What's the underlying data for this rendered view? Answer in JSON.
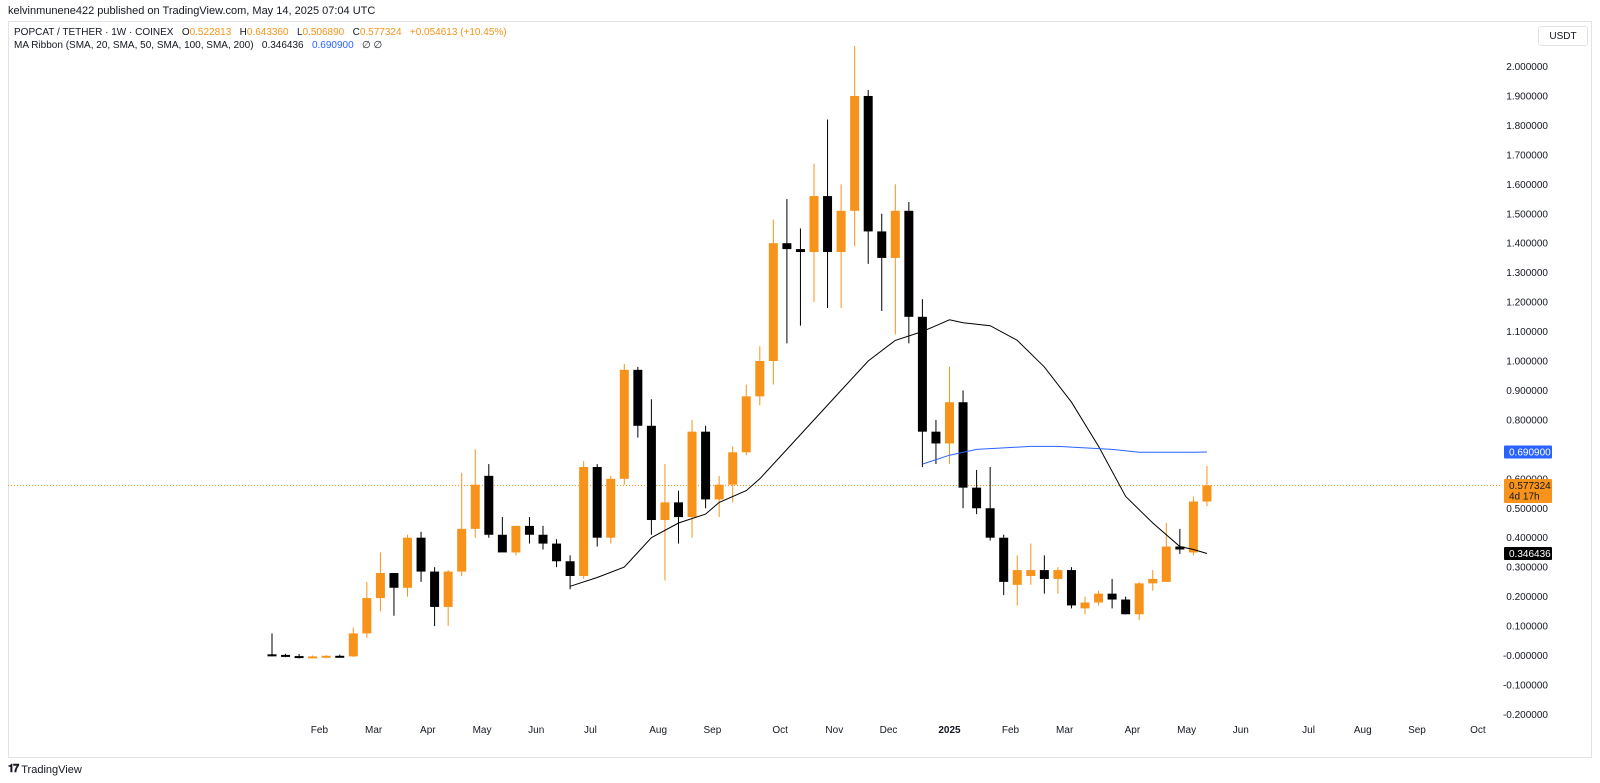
{
  "header": {
    "publish_info": "kelvinmunene422 published on TradingView.com, May 14, 2025 07:04 UTC"
  },
  "legend": {
    "symbol": "POPCAT / TETHER · 1W · COINEX",
    "open_label": "O",
    "open": "0.522813",
    "high_label": "H",
    "high": "0.643360",
    "low_label": "L",
    "low": "0.506890",
    "close_label": "C",
    "close": "0.577324",
    "change": "+0.054613 (+10.45%)",
    "indicator": "MA Ribbon (SMA, 20, SMA, 50, SMA, 100, SMA, 200)",
    "ma20_value": "0.346436",
    "ma50_value": "0.690900",
    "na_values": "∅ ∅"
  },
  "currency_button": "USDT",
  "footer": {
    "brand": "TradingView"
  },
  "colors": {
    "up": "#f7931a",
    "down": "#000000",
    "ma20": "#000000",
    "ma50": "#2962ff",
    "price_line": "#f7931a"
  },
  "chart_data": {
    "type": "candlestick",
    "symbol": "POPCAT / TETHER",
    "interval": "1W",
    "exchange": "COINEX",
    "ylim": [
      -0.2,
      2.05
    ],
    "y_ticks": [
      "2.000000",
      "1.900000",
      "1.800000",
      "1.700000",
      "1.600000",
      "1.500000",
      "1.400000",
      "1.300000",
      "1.200000",
      "1.100000",
      "1.000000",
      "0.900000",
      "0.800000",
      "0.700000",
      "0.600000",
      "0.500000",
      "0.400000",
      "0.300000",
      "0.200000",
      "0.100000",
      "-0.000000",
      "-0.100000",
      "-0.200000"
    ],
    "y_tick_values": [
      2.0,
      1.9,
      1.8,
      1.7,
      1.6,
      1.5,
      1.4,
      1.3,
      1.2,
      1.1,
      1.0,
      0.9,
      0.8,
      0.7,
      0.6,
      0.5,
      0.4,
      0.3,
      0.2,
      0.1,
      0.0,
      -0.1,
      -0.2
    ],
    "x_labels": [
      {
        "label": "Feb",
        "week": 3.5
      },
      {
        "label": "Mar",
        "week": 7.5
      },
      {
        "label": "Apr",
        "week": 11.5
      },
      {
        "label": "May",
        "week": 15.5
      },
      {
        "label": "Jun",
        "week": 19.5
      },
      {
        "label": "Jul",
        "week": 23.5
      },
      {
        "label": "Aug",
        "week": 28.5
      },
      {
        "label": "Sep",
        "week": 32.5
      },
      {
        "label": "Oct",
        "week": 37.5
      },
      {
        "label": "Nov",
        "week": 41.5
      },
      {
        "label": "Dec",
        "week": 45.5
      },
      {
        "label": "2025",
        "week": 50.0
      },
      {
        "label": "Feb",
        "week": 54.5
      },
      {
        "label": "Mar",
        "week": 58.5
      },
      {
        "label": "Apr",
        "week": 63.5
      },
      {
        "label": "May",
        "week": 67.5
      },
      {
        "label": "Jun",
        "week": 71.5
      },
      {
        "label": "Jul",
        "week": 76.5
      },
      {
        "label": "Aug",
        "week": 80.5
      },
      {
        "label": "Sep",
        "week": 84.5
      },
      {
        "label": "Oct",
        "week": 89.0
      }
    ],
    "candles": [
      {
        "o": 0.004,
        "h": 0.075,
        "l": -0.003,
        "c": 0.002
      },
      {
        "o": 0.002,
        "h": 0.006,
        "l": -0.006,
        "c": -0.002
      },
      {
        "o": -0.002,
        "h": 0.005,
        "l": -0.01,
        "c": -0.005
      },
      {
        "o": -0.005,
        "h": 0.0,
        "l": -0.008,
        "c": -0.003
      },
      {
        "o": -0.003,
        "h": 0.001,
        "l": -0.006,
        "c": -0.001
      },
      {
        "o": -0.001,
        "h": 0.003,
        "l": -0.005,
        "c": -0.003
      },
      {
        "o": -0.003,
        "h": 0.095,
        "l": -0.005,
        "c": 0.075
      },
      {
        "o": 0.075,
        "h": 0.25,
        "l": 0.06,
        "c": 0.195
      },
      {
        "o": 0.195,
        "h": 0.35,
        "l": 0.15,
        "c": 0.28
      },
      {
        "o": 0.28,
        "h": 0.28,
        "l": 0.135,
        "c": 0.23
      },
      {
        "o": 0.23,
        "h": 0.41,
        "l": 0.2,
        "c": 0.4
      },
      {
        "o": 0.4,
        "h": 0.42,
        "l": 0.25,
        "c": 0.285
      },
      {
        "o": 0.285,
        "h": 0.3,
        "l": 0.1,
        "c": 0.165
      },
      {
        "o": 0.165,
        "h": 0.29,
        "l": 0.1,
        "c": 0.285
      },
      {
        "o": 0.285,
        "h": 0.62,
        "l": 0.27,
        "c": 0.43
      },
      {
        "o": 0.43,
        "h": 0.7,
        "l": 0.4,
        "c": 0.58
      },
      {
        "o": 0.61,
        "h": 0.65,
        "l": 0.4,
        "c": 0.41
      },
      {
        "o": 0.41,
        "h": 0.47,
        "l": 0.36,
        "c": 0.35
      },
      {
        "o": 0.35,
        "h": 0.44,
        "l": 0.34,
        "c": 0.44
      },
      {
        "o": 0.44,
        "h": 0.47,
        "l": 0.38,
        "c": 0.41
      },
      {
        "o": 0.41,
        "h": 0.44,
        "l": 0.36,
        "c": 0.38
      },
      {
        "o": 0.38,
        "h": 0.395,
        "l": 0.3,
        "c": 0.32
      },
      {
        "o": 0.32,
        "h": 0.34,
        "l": 0.225,
        "c": 0.27
      },
      {
        "o": 0.27,
        "h": 0.66,
        "l": 0.26,
        "c": 0.64
      },
      {
        "o": 0.64,
        "h": 0.65,
        "l": 0.37,
        "c": 0.4
      },
      {
        "o": 0.4,
        "h": 0.61,
        "l": 0.38,
        "c": 0.6
      },
      {
        "o": 0.6,
        "h": 0.99,
        "l": 0.58,
        "c": 0.97
      },
      {
        "o": 0.97,
        "h": 0.98,
        "l": 0.74,
        "c": 0.78
      },
      {
        "o": 0.78,
        "h": 0.87,
        "l": 0.41,
        "c": 0.46
      },
      {
        "o": 0.46,
        "h": 0.65,
        "l": 0.255,
        "c": 0.52
      },
      {
        "o": 0.52,
        "h": 0.56,
        "l": 0.38,
        "c": 0.47
      },
      {
        "o": 0.47,
        "h": 0.8,
        "l": 0.4,
        "c": 0.76
      },
      {
        "o": 0.76,
        "h": 0.78,
        "l": 0.5,
        "c": 0.53
      },
      {
        "o": 0.53,
        "h": 0.61,
        "l": 0.47,
        "c": 0.58
      },
      {
        "o": 0.58,
        "h": 0.71,
        "l": 0.52,
        "c": 0.69
      },
      {
        "o": 0.69,
        "h": 0.92,
        "l": 0.68,
        "c": 0.88
      },
      {
        "o": 0.88,
        "h": 1.05,
        "l": 0.85,
        "c": 1.0
      },
      {
        "o": 1.0,
        "h": 1.48,
        "l": 0.92,
        "c": 1.4
      },
      {
        "o": 1.4,
        "h": 1.55,
        "l": 1.06,
        "c": 1.38
      },
      {
        "o": 1.38,
        "h": 1.45,
        "l": 1.12,
        "c": 1.37
      },
      {
        "o": 1.37,
        "h": 1.67,
        "l": 1.2,
        "c": 1.56
      },
      {
        "o": 1.56,
        "h": 1.82,
        "l": 1.18,
        "c": 1.37
      },
      {
        "o": 1.37,
        "h": 1.6,
        "l": 1.18,
        "c": 1.51
      },
      {
        "o": 1.51,
        "h": 2.07,
        "l": 1.39,
        "c": 1.9
      },
      {
        "o": 1.9,
        "h": 1.92,
        "l": 1.33,
        "c": 1.44
      },
      {
        "o": 1.44,
        "h": 1.5,
        "l": 1.17,
        "c": 1.35
      },
      {
        "o": 1.35,
        "h": 1.6,
        "l": 1.09,
        "c": 1.51
      },
      {
        "o": 1.51,
        "h": 1.54,
        "l": 1.06,
        "c": 1.15
      },
      {
        "o": 1.15,
        "h": 1.21,
        "l": 0.64,
        "c": 0.76
      },
      {
        "o": 0.76,
        "h": 0.8,
        "l": 0.65,
        "c": 0.72
      },
      {
        "o": 0.72,
        "h": 0.98,
        "l": 0.65,
        "c": 0.86
      },
      {
        "o": 0.86,
        "h": 0.9,
        "l": 0.5,
        "c": 0.57
      },
      {
        "o": 0.57,
        "h": 0.63,
        "l": 0.48,
        "c": 0.5
      },
      {
        "o": 0.5,
        "h": 0.64,
        "l": 0.39,
        "c": 0.4
      },
      {
        "o": 0.4,
        "h": 0.41,
        "l": 0.205,
        "c": 0.25
      },
      {
        "o": 0.24,
        "h": 0.34,
        "l": 0.17,
        "c": 0.29
      },
      {
        "o": 0.27,
        "h": 0.38,
        "l": 0.24,
        "c": 0.29
      },
      {
        "o": 0.29,
        "h": 0.34,
        "l": 0.21,
        "c": 0.26
      },
      {
        "o": 0.26,
        "h": 0.3,
        "l": 0.21,
        "c": 0.29
      },
      {
        "o": 0.29,
        "h": 0.3,
        "l": 0.16,
        "c": 0.17
      },
      {
        "o": 0.16,
        "h": 0.2,
        "l": 0.14,
        "c": 0.18
      },
      {
        "o": 0.18,
        "h": 0.22,
        "l": 0.17,
        "c": 0.21
      },
      {
        "o": 0.21,
        "h": 0.26,
        "l": 0.16,
        "c": 0.19
      },
      {
        "o": 0.19,
        "h": 0.2,
        "l": 0.14,
        "c": 0.14
      },
      {
        "o": 0.14,
        "h": 0.25,
        "l": 0.12,
        "c": 0.245
      },
      {
        "o": 0.245,
        "h": 0.29,
        "l": 0.22,
        "c": 0.26
      },
      {
        "o": 0.25,
        "h": 0.45,
        "l": 0.25,
        "c": 0.37
      },
      {
        "o": 0.37,
        "h": 0.43,
        "l": 0.345,
        "c": 0.36
      },
      {
        "o": 0.35,
        "h": 0.54,
        "l": 0.34,
        "c": 0.522813
      },
      {
        "o": 0.522813,
        "h": 0.64336,
        "l": 0.50689,
        "c": 0.577324
      }
    ],
    "series": [
      {
        "name": "MA20",
        "points": [
          [
            22,
            0.235
          ],
          [
            24,
            0.265
          ],
          [
            26,
            0.3
          ],
          [
            28,
            0.4
          ],
          [
            30,
            0.45
          ],
          [
            32,
            0.48
          ],
          [
            33,
            0.52
          ],
          [
            35,
            0.56
          ],
          [
            36,
            0.6
          ],
          [
            38,
            0.7
          ],
          [
            40,
            0.8
          ],
          [
            42,
            0.9
          ],
          [
            44,
            1.0
          ],
          [
            46,
            1.07
          ],
          [
            48,
            1.1
          ],
          [
            49,
            1.12
          ],
          [
            50,
            1.14
          ],
          [
            51,
            1.13
          ],
          [
            53,
            1.12
          ],
          [
            55,
            1.07
          ],
          [
            57,
            0.98
          ],
          [
            59,
            0.86
          ],
          [
            61,
            0.71
          ],
          [
            63,
            0.54
          ],
          [
            65,
            0.45
          ],
          [
            67,
            0.37
          ],
          [
            68,
            0.36
          ],
          [
            69,
            0.346436
          ]
        ]
      },
      {
        "name": "MA50",
        "points": [
          [
            48,
            0.65
          ],
          [
            50,
            0.68
          ],
          [
            52,
            0.7
          ],
          [
            54,
            0.705
          ],
          [
            56,
            0.71
          ],
          [
            58,
            0.71
          ],
          [
            60,
            0.705
          ],
          [
            62,
            0.7
          ],
          [
            64,
            0.69
          ],
          [
            66,
            0.69
          ],
          [
            68,
            0.69
          ],
          [
            69,
            0.6909
          ]
        ]
      }
    ],
    "price_labels": [
      {
        "value": 0.6909,
        "text": "0.690900"
      },
      {
        "value": 0.577324,
        "text": "0.577324",
        "sub": "4d 17h"
      },
      {
        "value": 0.346436,
        "text": "0.346436"
      }
    ],
    "last_close": 0.577324
  }
}
